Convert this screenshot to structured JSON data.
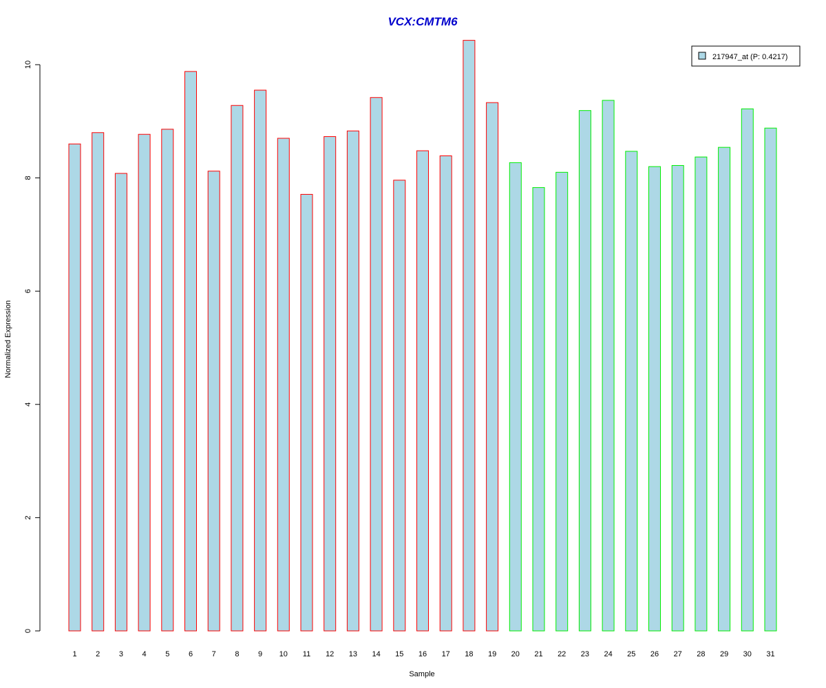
{
  "chart_data": {
    "type": "bar",
    "title": "VCX:CMTM6",
    "xlabel": "Sample",
    "ylabel": "Normalized Expression",
    "ylim": [
      0,
      10
    ],
    "yticks": [
      "0",
      "2",
      "4",
      "6",
      "8",
      "10"
    ],
    "categories": [
      "1",
      "2",
      "3",
      "4",
      "5",
      "6",
      "7",
      "8",
      "9",
      "10",
      "11",
      "12",
      "13",
      "14",
      "15",
      "16",
      "17",
      "18",
      "19",
      "20",
      "21",
      "22",
      "23",
      "24",
      "25",
      "26",
      "27",
      "28",
      "29",
      "30",
      "31"
    ],
    "values": [
      8.6,
      8.8,
      8.08,
      8.77,
      8.86,
      9.88,
      8.12,
      9.28,
      9.55,
      8.7,
      7.71,
      8.73,
      8.83,
      9.42,
      7.96,
      8.48,
      8.39,
      10.43,
      9.33,
      8.27,
      7.83,
      8.1,
      9.19,
      9.37,
      8.47,
      8.2,
      8.22,
      8.37,
      8.54,
      9.22,
      8.88
    ],
    "groups": [
      {
        "from": 1,
        "to": 19,
        "outline": "#ff0000"
      },
      {
        "from": 20,
        "to": 31,
        "outline": "#00ee00"
      }
    ],
    "legend": [
      {
        "label": "217947_at (P: 0.4217)",
        "fill": "#add8e6"
      }
    ],
    "legend_position": "top-right",
    "grid": false,
    "colors": {
      "bar_fill": "#add8e6",
      "title": "#0000cc",
      "axis": "#000000"
    }
  }
}
